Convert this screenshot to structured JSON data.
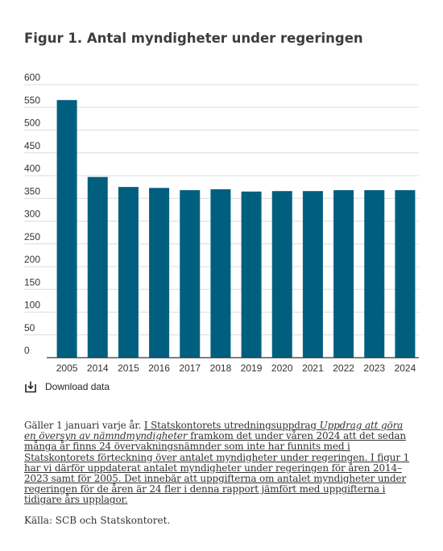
{
  "figure": {
    "title": "Figur 1. Antal myndigheter under regeringen",
    "download_label": "Download data",
    "note_prefix": "Gäller 1 januari varje år. ",
    "note_link_part1": "I Statskontorets utredningsuppdrag ",
    "note_link_italic": "Uppdrag att göra en översyn av nämndmyndigheter",
    "note_link_part2": " framkom det under våren 2024 att det sedan många år finns 24 övervakningsnämnder som inte har funnits med i Statskontorets förteckning över antalet myndigheter under regeringen. I figur 1 har vi därför uppdaterat antalet myndigheter under regeringen för åren 2014–2023 samt för 2005. Det innebär att uppgifterna om antalet myndigheter under regeringen för de åren är 24 fler i denna rapport jämfört med uppgifterna i tidigare års upplagor.",
    "source": "Källa: SCB och Statskontoret."
  },
  "colors": {
    "bar": "#005f7f",
    "grid": "#dcdcdc",
    "axis": "#333333",
    "text": "#333333"
  },
  "icons": {
    "download": "download-icon"
  },
  "chart_data": {
    "type": "bar",
    "categories": [
      "2005",
      "2014",
      "2015",
      "2016",
      "2017",
      "2018",
      "2019",
      "2020",
      "2021",
      "2022",
      "2023",
      "2024"
    ],
    "values": [
      566,
      397,
      375,
      373,
      368,
      370,
      365,
      366,
      366,
      368,
      368,
      368
    ],
    "ylim": [
      0,
      600
    ],
    "yticks": [
      0,
      50,
      100,
      150,
      200,
      250,
      300,
      350,
      400,
      450,
      500,
      550,
      600
    ],
    "grid": true,
    "legend": "none",
    "xlabel": "",
    "ylabel": ""
  }
}
